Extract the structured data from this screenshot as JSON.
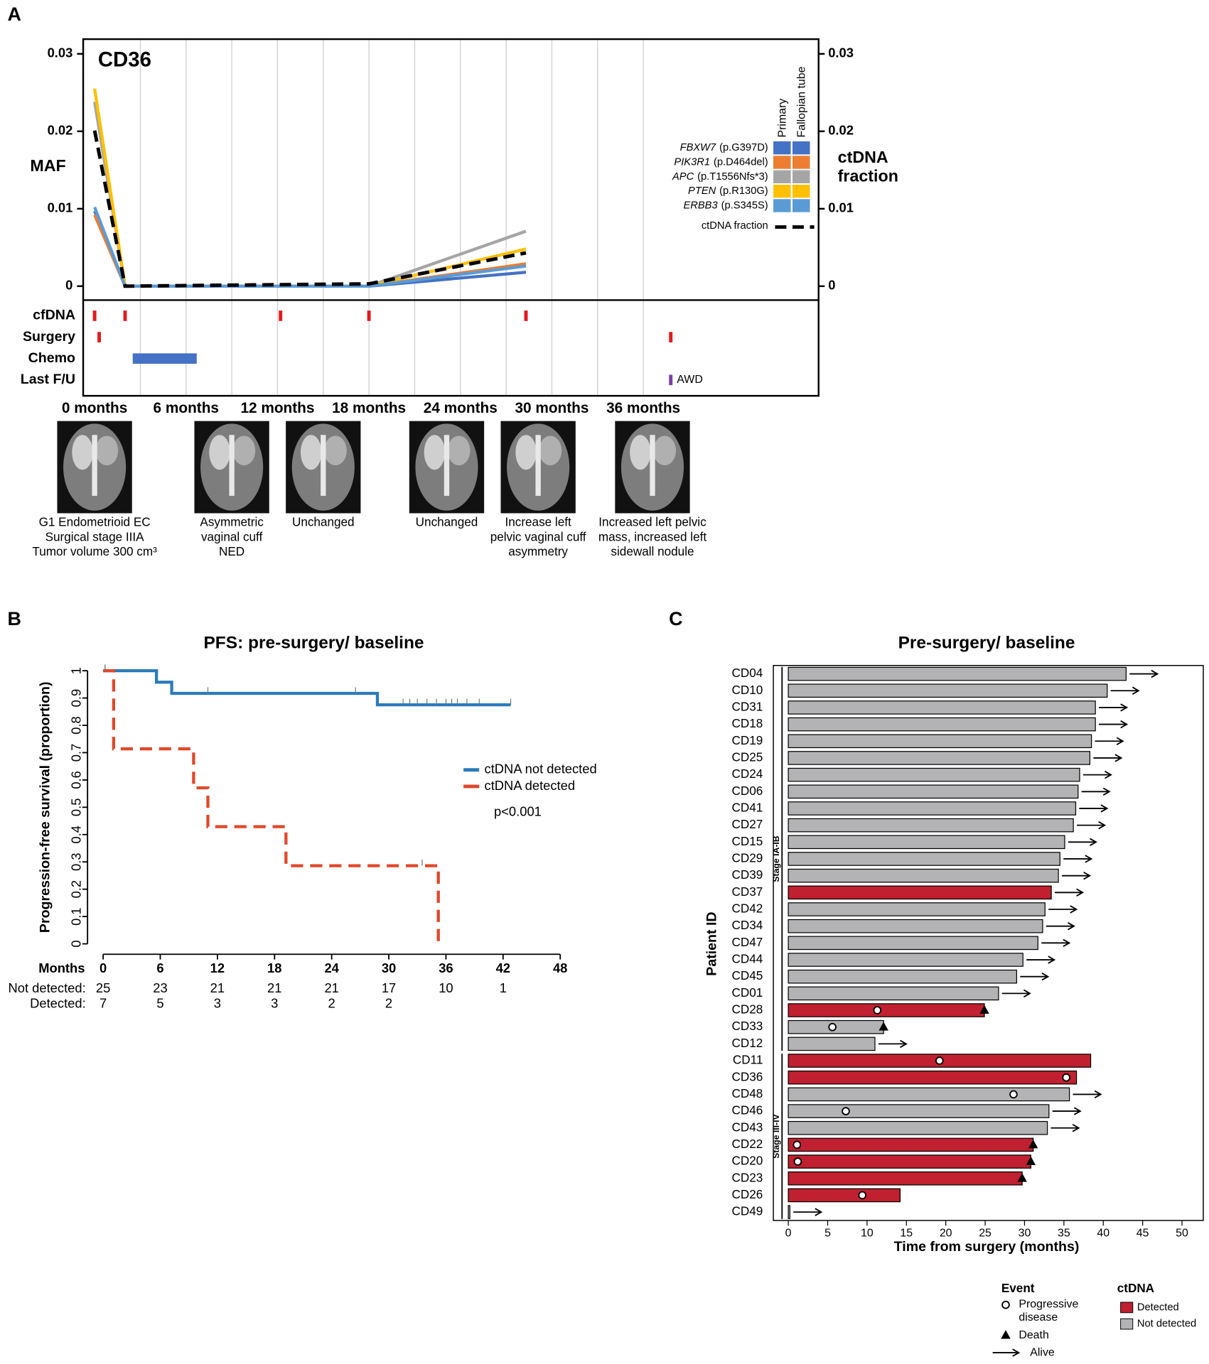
{
  "chart_data": [
    {
      "type": "line",
      "panel": "A",
      "title": "CD36",
      "ylabel": "MAF",
      "y2label": "ctDNA fraction",
      "x": [
        0,
        2,
        12.2,
        18,
        28.3
      ],
      "xlim": [
        -0.75,
        47.5
      ],
      "xticks": [
        {
          "value": 0,
          "label": "0 months"
        },
        {
          "value": 6,
          "label": "6 months"
        },
        {
          "value": 12,
          "label": "12 months"
        },
        {
          "value": 18,
          "label": "18 months"
        },
        {
          "value": 24,
          "label": "24 months"
        },
        {
          "value": 30,
          "label": "30 months"
        },
        {
          "value": 36,
          "label": "36 months"
        }
      ],
      "xgrid": [
        3,
        6,
        9,
        12,
        15,
        18,
        21,
        24,
        27,
        30,
        33,
        36
      ],
      "ylim": [
        -0.0018,
        0.0319
      ],
      "yticks": [
        0,
        0.01,
        0.02,
        0.03
      ],
      "y2lim": [
        -0.0018,
        0.0319
      ],
      "y2ticks": [
        0,
        0.01,
        0.02,
        0.03
      ],
      "legend_columns": [
        "Primary",
        "Fallopian tube"
      ],
      "series": [
        {
          "name": "FBXW7",
          "variant": "(p.G397D)",
          "color": "#4472c4",
          "values": [
            0.0097,
            0,
            0,
            0,
            0.0018
          ]
        },
        {
          "name": "PIK3R1",
          "variant": "(p.D464del)",
          "color": "#ed7d31",
          "values": [
            0.0092,
            0,
            0,
            0,
            0.0029
          ]
        },
        {
          "name": "APC",
          "variant": "(p.T1556Nfs*3)",
          "color": "#a5a5a5",
          "values": [
            0.0238,
            0,
            0,
            0,
            0.0071
          ]
        },
        {
          "name": "PTEN",
          "variant": "(p.R130G)",
          "color": "#ffc000",
          "values": [
            0.0255,
            0,
            0,
            0,
            0.0048
          ]
        },
        {
          "name": "ERBB3",
          "variant": "(p.S345S)",
          "color": "#5b9bd5",
          "values": [
            0.0102,
            0,
            0,
            0,
            0.0026
          ]
        },
        {
          "name": "ctDNA fraction",
          "color": "#000000",
          "dash": true,
          "axis": "y2",
          "values": [
            0.0201,
            0,
            0.0002,
            0.0003,
            0.0043
          ]
        }
      ],
      "tracks": [
        {
          "name": "cfDNA",
          "color": "#e31a1c",
          "times": [
            0,
            2,
            12.2,
            18,
            28.3
          ]
        },
        {
          "name": "Surgery",
          "color": "#e31a1c",
          "times": [
            0.3,
            37.8
          ]
        },
        {
          "name": "Chemo",
          "color": "#4472c4",
          "intervals": [
            [
              2.5,
              6.7
            ]
          ]
        },
        {
          "name": "Last F/U",
          "color": "#7b3fa0",
          "times": [
            37.8
          ],
          "label": "AWD"
        }
      ],
      "imaging": [
        {
          "time": 0,
          "caption": [
            "G1 Endometrioid EC",
            "Surgical stage IIIA",
            "Tumor volume 300 cm³"
          ]
        },
        {
          "time": 9,
          "caption": [
            "Asymmetric",
            "vaginal cuff",
            "NED"
          ]
        },
        {
          "time": 15,
          "caption": [
            "Unchanged"
          ]
        },
        {
          "time": 23.1,
          "caption": [
            "Unchanged"
          ]
        },
        {
          "time": 29.1,
          "caption": [
            "Increase left",
            "pelvic vaginal cuff",
            "asymmetry"
          ]
        },
        {
          "time": 36.6,
          "caption": [
            "Increased left pelvic",
            "mass, increased left",
            "sidewall nodule"
          ]
        }
      ]
    },
    {
      "type": "step",
      "panel": "B",
      "title": "PFS: pre-surgery/ baseline",
      "ylabel": "Progression-free survival (proportion)",
      "xlabel": "Months",
      "xlim": [
        -1,
        50
      ],
      "xticks": [
        0,
        6,
        12,
        18,
        24,
        30,
        36,
        42,
        48
      ],
      "ylim": [
        -0.03,
        1.03
      ],
      "yticks": [
        0,
        0.1,
        0.2,
        0.3,
        0.4,
        0.5,
        0.6,
        0.7,
        0.8,
        0.9,
        1
      ],
      "annotation": "p<0.001",
      "series": [
        {
          "name": "ctDNA not detected",
          "color": "#2b7bba",
          "x": [
            0,
            5.6,
            7.2,
            28.8,
            42.8
          ],
          "values": [
            1,
            0.958,
            0.917,
            0.875,
            0.875
          ],
          "censor": [
            0.2,
            11,
            26.5,
            31.5,
            32.2,
            33,
            34,
            35,
            36,
            36.6,
            37.2,
            38.2,
            39.5,
            42.8
          ]
        },
        {
          "name": "ctDNA detected",
          "color": "#e0482a",
          "dash": true,
          "x": [
            0,
            1.1,
            9.5,
            11,
            19.2,
            35.2
          ],
          "values": [
            1,
            0.714,
            0.571,
            0.429,
            0.286,
            0
          ],
          "censor": [
            0.2,
            33.5
          ]
        }
      ],
      "risk_table": [
        {
          "name": "Not detected:",
          "color": "#2b7bba",
          "counts": [
            25,
            23,
            21,
            21,
            21,
            17,
            10,
            1
          ]
        },
        {
          "name": "Detected:",
          "color": "#e0482a",
          "counts": [
            7,
            5,
            3,
            3,
            2,
            2
          ]
        }
      ]
    },
    {
      "type": "swimmer",
      "panel": "C",
      "title": "Pre-surgery/ baseline",
      "ylabel": "Patient ID",
      "xlabel": "Time from surgery (months)",
      "xlim": [
        -1.9,
        52.7
      ],
      "xticks": [
        0,
        5,
        10,
        15,
        20,
        25,
        30,
        35,
        40,
        45,
        50
      ],
      "categories": [
        "CD04",
        "CD10",
        "CD31",
        "CD18",
        "CD19",
        "CD25",
        "CD24",
        "CD06",
        "CD41",
        "CD27",
        "CD15",
        "CD29",
        "CD39",
        "CD37",
        "CD42",
        "CD34",
        "CD47",
        "CD44",
        "CD45",
        "CD01",
        "CD28",
        "CD33",
        "CD12",
        "CD11",
        "CD36",
        "CD48",
        "CD46",
        "CD43",
        "CD22",
        "CD20",
        "CD23",
        "CD26",
        "CD49"
      ],
      "values": [
        42.9,
        40.5,
        39.0,
        39.0,
        38.5,
        38.3,
        37.0,
        36.8,
        36.5,
        36.2,
        35.1,
        34.5,
        34.3,
        33.4,
        32.6,
        32.3,
        31.7,
        29.8,
        29.0,
        26.7,
        24.9,
        12.1,
        11.0,
        38.4,
        36.6,
        35.7,
        33.1,
        32.9,
        31.1,
        30.8,
        29.7,
        14.2,
        0.2
      ],
      "ctdna": [
        "Not detected",
        "Not detected",
        "Not detected",
        "Not detected",
        "Not detected",
        "Not detected",
        "Not detected",
        "Not detected",
        "Not detected",
        "Not detected",
        "Not detected",
        "Not detected",
        "Not detected",
        "Detected",
        "Not detected",
        "Not detected",
        "Not detected",
        "Not detected",
        "Not detected",
        "Not detected",
        "Detected",
        "Not detected",
        "Not detected",
        "Detected",
        "Detected",
        "Not detected",
        "Not detected",
        "Not detected",
        "Detected",
        "Detected",
        "Detected",
        "Detected",
        "Not detected"
      ],
      "progression": [
        null,
        null,
        null,
        null,
        null,
        null,
        null,
        null,
        null,
        null,
        null,
        null,
        null,
        null,
        null,
        null,
        null,
        null,
        null,
        null,
        11.3,
        5.6,
        null,
        19.2,
        35.3,
        28.6,
        7.3,
        null,
        1.1,
        1.2,
        null,
        9.4,
        null
      ],
      "outcome": [
        "Alive",
        "Alive",
        "Alive",
        "Alive",
        "Alive",
        "Alive",
        "Alive",
        "Alive",
        "Alive",
        "Alive",
        "Alive",
        "Alive",
        "Alive",
        "Alive",
        "Alive",
        "Alive",
        "Alive",
        "Alive",
        "Alive",
        "Alive",
        "Death",
        "Death",
        "Alive",
        null,
        null,
        "Alive",
        "Alive",
        "Alive",
        "Death",
        "Death",
        "Death",
        null,
        "Alive"
      ],
      "groups": [
        {
          "name": "Stage IA-IB",
          "count": 23
        },
        {
          "name": "Stage III-IV",
          "count": 10
        }
      ],
      "event_legend": {
        "title": "Event",
        "items": [
          {
            "name": "Progressive disease",
            "symbol": "circle"
          },
          {
            "name": "Death",
            "symbol": "triangle"
          },
          {
            "name": "Alive",
            "symbol": "arrow"
          }
        ]
      },
      "ctdna_legend": {
        "title": "ctDNA",
        "items": [
          {
            "name": "Detected",
            "color": "#c0202f"
          },
          {
            "name": "Not detected",
            "color": "#b3b3b5"
          }
        ]
      }
    }
  ]
}
